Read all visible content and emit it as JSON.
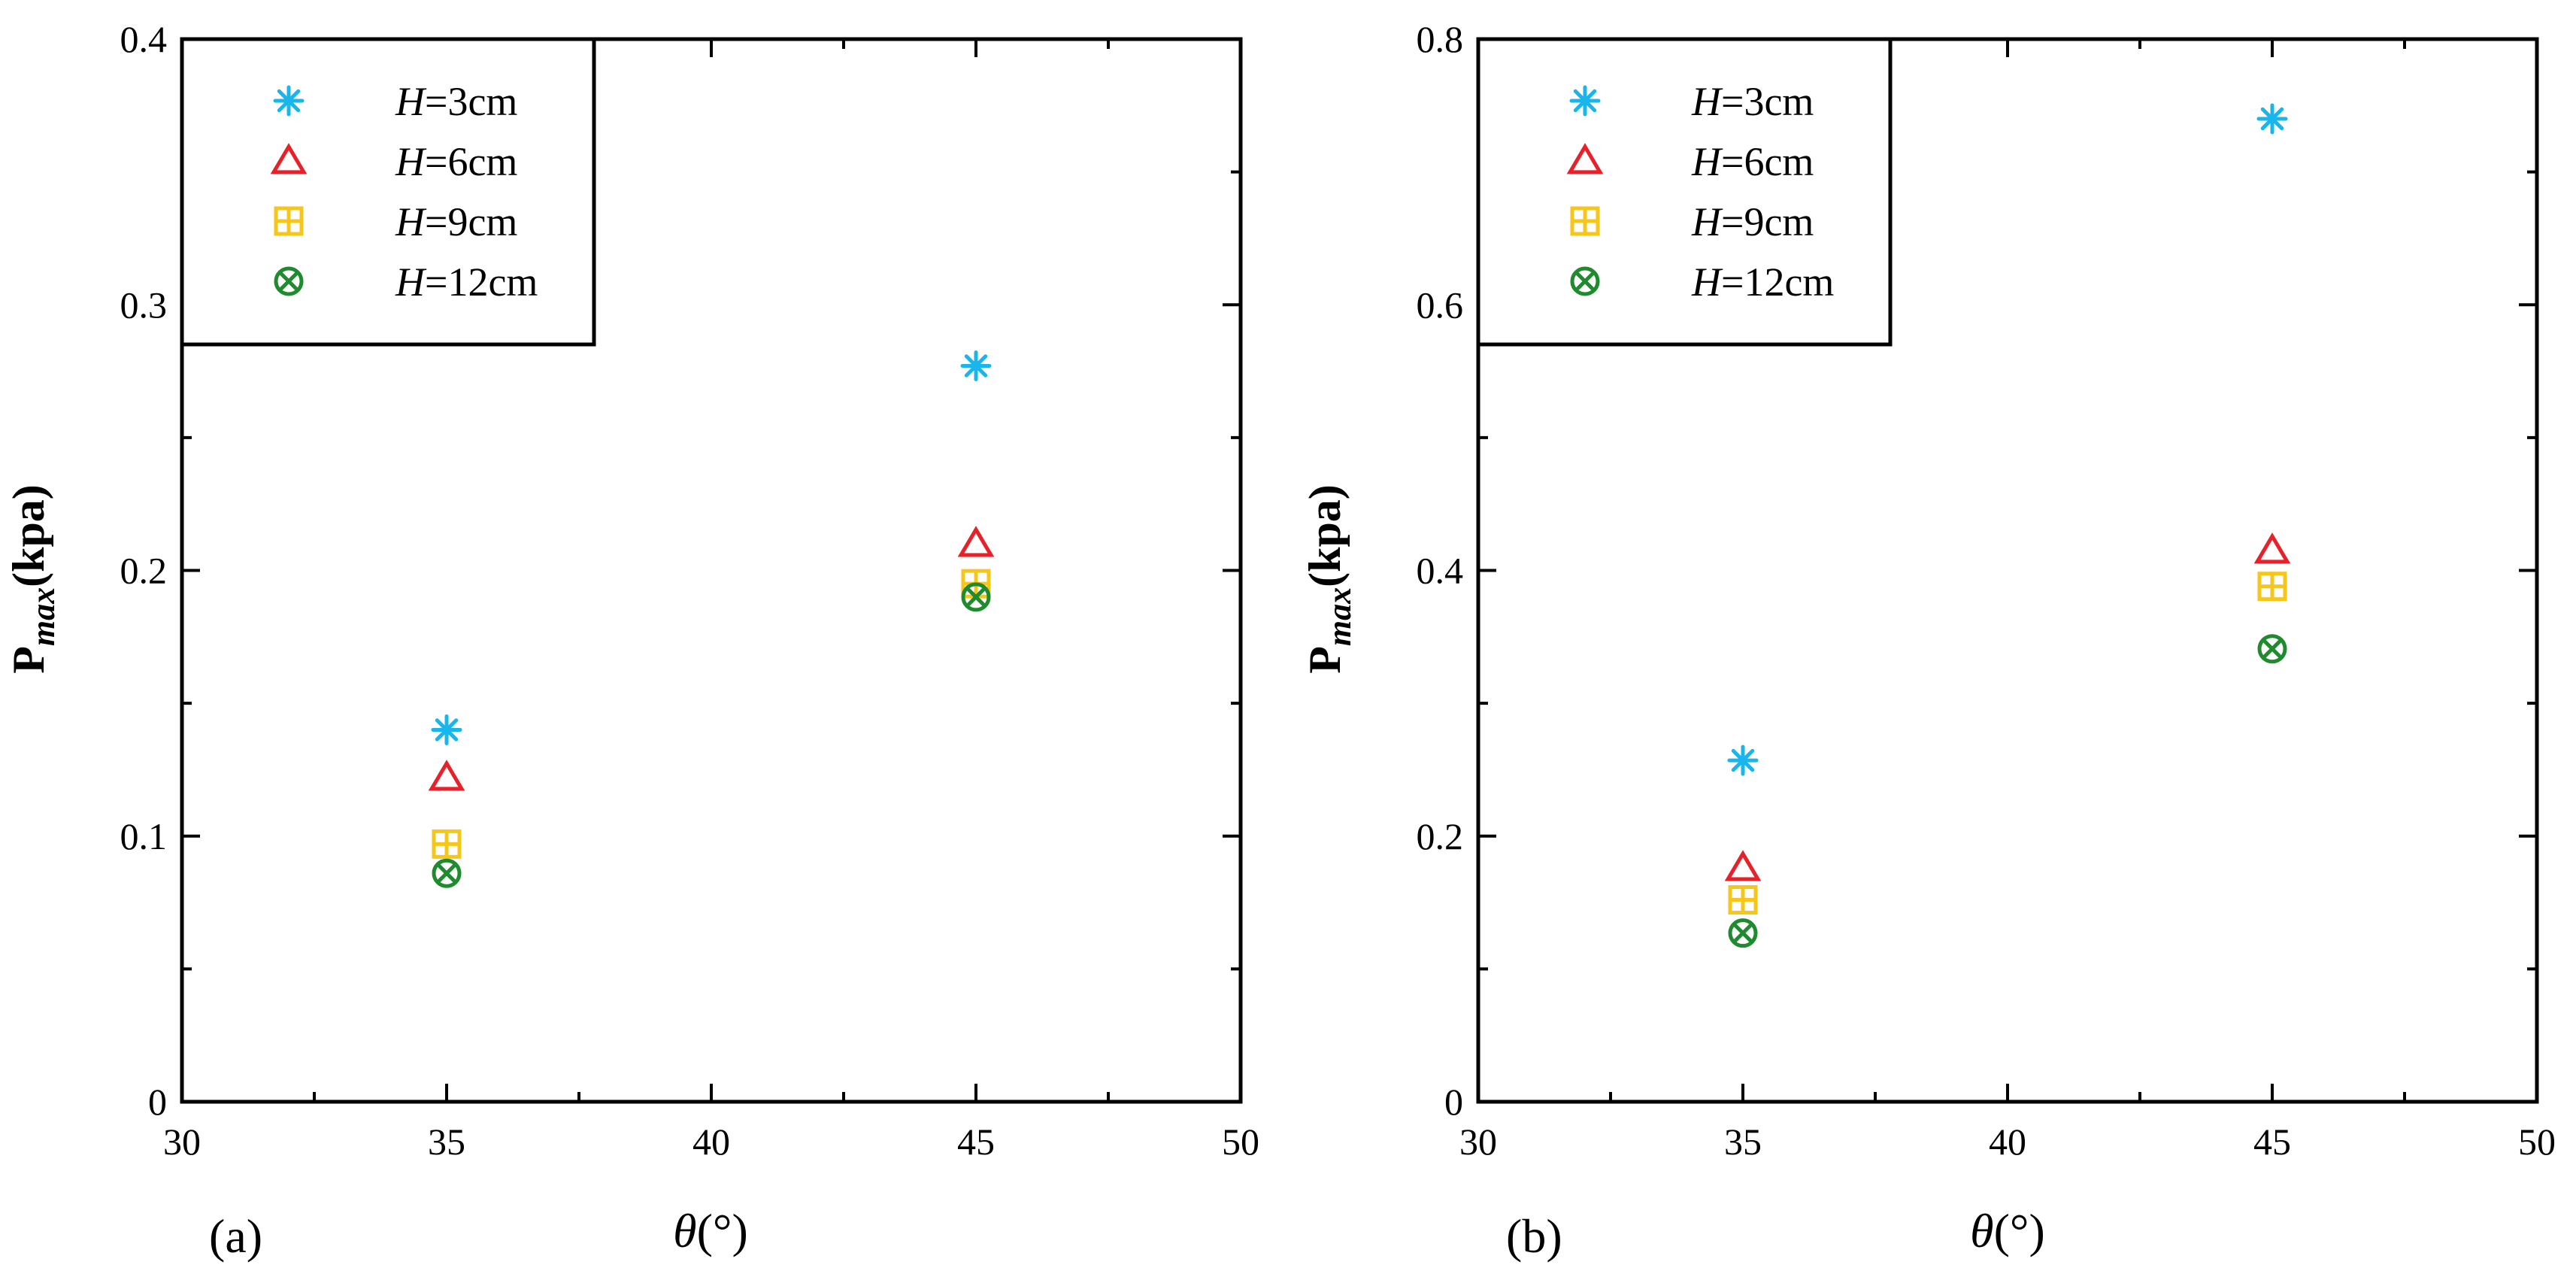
{
  "chart_data": [
    {
      "type": "scatter",
      "panel": "(a)",
      "xlabel": {
        "symbol": "θ",
        "unit": "(°)"
      },
      "ylabel": {
        "base": "P",
        "sub": "max",
        "unit": "(kpa)"
      },
      "xlim": [
        30,
        50
      ],
      "ylim": [
        0,
        0.4
      ],
      "xticks": [
        30,
        35,
        40,
        45,
        50
      ],
      "yticks": [
        0,
        0.1,
        0.2,
        0.3,
        0.4
      ],
      "x_tick_labels": [
        "30",
        "35",
        "40",
        "45",
        "50"
      ],
      "y_tick_labels": [
        "0",
        "0.1",
        "0.2",
        "0.3",
        "0.4"
      ],
      "legend_position": "top-left",
      "series": [
        {
          "name": "H=3cm",
          "label_var": "H",
          "label_rest": "=3cm",
          "marker": "asterisk",
          "color": "#1ab5ea",
          "points": [
            [
              35,
              0.14
            ],
            [
              45,
              0.277
            ]
          ]
        },
        {
          "name": "H=6cm",
          "label_var": "H",
          "label_rest": "=6cm",
          "marker": "triangle",
          "color": "#e8202a",
          "points": [
            [
              35,
              0.122
            ],
            [
              45,
              0.21
            ]
          ]
        },
        {
          "name": "H=9cm",
          "label_var": "H",
          "label_rest": "=9cm",
          "marker": "square-plus",
          "color": "#f7c61a",
          "points": [
            [
              35,
              0.097
            ],
            [
              45,
              0.195
            ]
          ]
        },
        {
          "name": "H=12cm",
          "label_var": "H",
          "label_rest": "=12cm",
          "marker": "circle-x",
          "color": "#1f8a2e",
          "points": [
            [
              35,
              0.086
            ],
            [
              45,
              0.19
            ]
          ]
        }
      ]
    },
    {
      "type": "scatter",
      "panel": "(b)",
      "xlabel": {
        "symbol": "θ",
        "unit": "(°)"
      },
      "ylabel": {
        "base": "P",
        "sub": "max",
        "unit": "(kpa)"
      },
      "xlim": [
        30,
        50
      ],
      "ylim": [
        0,
        0.8
      ],
      "xticks": [
        30,
        35,
        40,
        45,
        50
      ],
      "yticks": [
        0,
        0.2,
        0.4,
        0.6,
        0.8
      ],
      "x_tick_labels": [
        "30",
        "35",
        "40",
        "45",
        "50"
      ],
      "y_tick_labels": [
        "0",
        "0.2",
        "0.4",
        "0.6",
        "0.8"
      ],
      "legend_position": "top-left",
      "series": [
        {
          "name": "H=3cm",
          "label_var": "H",
          "label_rest": "=3cm",
          "marker": "asterisk",
          "color": "#1ab5ea",
          "points": [
            [
              35,
              0.257
            ],
            [
              45,
              0.74
            ]
          ]
        },
        {
          "name": "H=6cm",
          "label_var": "H",
          "label_rest": "=6cm",
          "marker": "triangle",
          "color": "#e8202a",
          "points": [
            [
              35,
              0.176
            ],
            [
              45,
              0.415
            ]
          ]
        },
        {
          "name": "H=9cm",
          "label_var": "H",
          "label_rest": "=9cm",
          "marker": "square-plus",
          "color": "#f7c61a",
          "points": [
            [
              35,
              0.152
            ],
            [
              45,
              0.388
            ]
          ]
        },
        {
          "name": "H=12cm",
          "label_var": "H",
          "label_rest": "=12cm",
          "marker": "circle-x",
          "color": "#1f8a2e",
          "points": [
            [
              35,
              0.127
            ],
            [
              45,
              0.341
            ]
          ]
        }
      ]
    }
  ]
}
